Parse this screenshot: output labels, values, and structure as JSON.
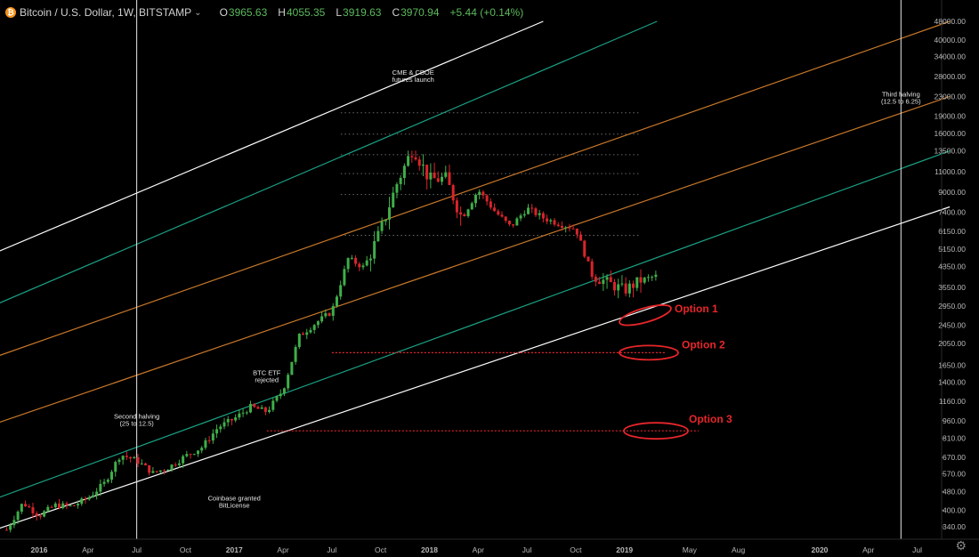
{
  "header": {
    "symbol": "Bitcoin / U.S. Dollar, 1W, BITSTAMP",
    "open_label": "O",
    "open": "3965.63",
    "high_label": "H",
    "high": "4055.35",
    "low_label": "L",
    "low": "3919.63",
    "close_label": "C",
    "close": "3970.94",
    "change": "+5.44 (+0.14%)"
  },
  "colors": {
    "up": "#26a69a",
    "up_candle": "#3fae49",
    "down": "#d9242b",
    "outer_channel": "#ffffff",
    "teal_channel": "#1aa083",
    "orange_channel": "#c8782a",
    "annotation": "#e8262a",
    "axis_text": "#b8b8b8"
  },
  "chart_data": {
    "type": "line",
    "title": "",
    "scale": "log",
    "ylim": [
      305,
      48000
    ],
    "y_ticks": [
      48000,
      40000,
      34000,
      28000,
      23000,
      19000,
      16000,
      13500,
      11000,
      9000,
      7400,
      6150,
      5150,
      4350,
      3550,
      2950,
      2450,
      2050,
      1650,
      1400,
      1160,
      960,
      810,
      670,
      570,
      480,
      400,
      340
    ],
    "x_ticks": [
      "2016",
      "Apr",
      "Jul",
      "Oct",
      "2017",
      "Apr",
      "Jul",
      "Oct",
      "2018",
      "Apr",
      "Jul",
      "Oct",
      "2019",
      "May",
      "Aug",
      "2020",
      "Apr",
      "Jul"
    ],
    "x_range": [
      "2015-11",
      "2020-09"
    ],
    "series": [
      {
        "dates": [
          "2015-11",
          "2015-12",
          "2016-01",
          "2016-02",
          "2016-03",
          "2016-04",
          "2016-05",
          "2016-06",
          "2016-07",
          "2016-08",
          "2016-09",
          "2016-10",
          "2016-11",
          "2016-12",
          "2017-01",
          "2017-02",
          "2017-03",
          "2017-04",
          "2017-05",
          "2017-06",
          "2017-07",
          "2017-08",
          "2017-09",
          "2017-10",
          "2017-11",
          "2017-12",
          "2018-01",
          "2018-02",
          "2018-03",
          "2018-04",
          "2018-05",
          "2018-06",
          "2018-07",
          "2018-08",
          "2018-09",
          "2018-10",
          "2018-11",
          "2018-12",
          "2019-01",
          "2019-02",
          "2019-03"
        ],
        "values": [
          330,
          430,
          380,
          420,
          415,
          450,
          520,
          690,
          650,
          575,
          610,
          680,
          740,
          900,
          980,
          1100,
          1050,
          1300,
          2200,
          2500,
          2800,
          4700,
          4300,
          6200,
          9800,
          14000,
          10200,
          10300,
          7000,
          9200,
          7500,
          6400,
          7700,
          7000,
          6600,
          6300,
          4000,
          3700,
          3450,
          3800,
          3970
        ]
      }
    ],
    "channels": [
      {
        "name": "outer-upper",
        "color": "white",
        "points": [
          [
            "2015-11",
            4500
          ],
          [
            "2018-08",
            48000
          ]
        ]
      },
      {
        "name": "teal-upper",
        "color": "teal",
        "points": [
          [
            "2015-11",
            2700
          ],
          [
            "2019-03",
            48000
          ]
        ]
      },
      {
        "name": "orange-upper",
        "color": "orange",
        "points": [
          [
            "2015-11",
            1650
          ],
          [
            "2020-09",
            48000
          ]
        ]
      },
      {
        "name": "orange-lower",
        "color": "orange",
        "points": [
          [
            "2015-11",
            860
          ],
          [
            "2020-09",
            23000
          ]
        ]
      },
      {
        "name": "teal-lower",
        "color": "teal",
        "points": [
          [
            "2015-11",
            410
          ],
          [
            "2020-09",
            13500
          ]
        ]
      },
      {
        "name": "outer-lower",
        "color": "white",
        "points": [
          [
            "2015-11",
            305
          ],
          [
            "2020-09",
            7800
          ]
        ]
      }
    ],
    "fib_levels": [
      {
        "price": 19600,
        "from": "2017-07",
        "to": "2018-12"
      },
      {
        "price": 15900,
        "from": "2017-07",
        "to": "2018-12"
      },
      {
        "price": 13000,
        "from": "2017-07",
        "to": "2018-12"
      },
      {
        "price": 10800,
        "from": "2017-07",
        "to": "2018-12"
      },
      {
        "price": 8800,
        "from": "2017-07",
        "to": "2018-12"
      },
      {
        "price": 5900,
        "from": "2017-07",
        "to": "2018-12"
      }
    ],
    "vertical_lines": [
      "2016-07",
      "2020-06"
    ],
    "annotations": [
      {
        "text": "CME & CBOE",
        "line2": "futures launch",
        "date": "2017-12",
        "price": 28500
      },
      {
        "text": "BTC ETF",
        "line2": "rejected",
        "date": "2017-03",
        "price": 1500
      },
      {
        "text": "Second halving",
        "line2": "(25 to 12.5)",
        "date": "2016-07",
        "price": 980
      },
      {
        "text": "Coinbase granted",
        "line2": "BitLicense",
        "date": "2017-01",
        "price": 440
      },
      {
        "text": "Third halving",
        "line2": "(12.5 to 6.25)",
        "date": "2020-06",
        "price": 23000
      }
    ],
    "options": [
      {
        "label": "Option 1",
        "price": 2700
      },
      {
        "label": "Option 2",
        "price": 1870
      },
      {
        "label": "Option 3",
        "price": 870
      }
    ],
    "option_levels": [
      {
        "price": 1870,
        "from": "2017-07",
        "to": "2019-03"
      },
      {
        "price": 870,
        "from": "2017-03",
        "to": "2019-05"
      }
    ]
  }
}
